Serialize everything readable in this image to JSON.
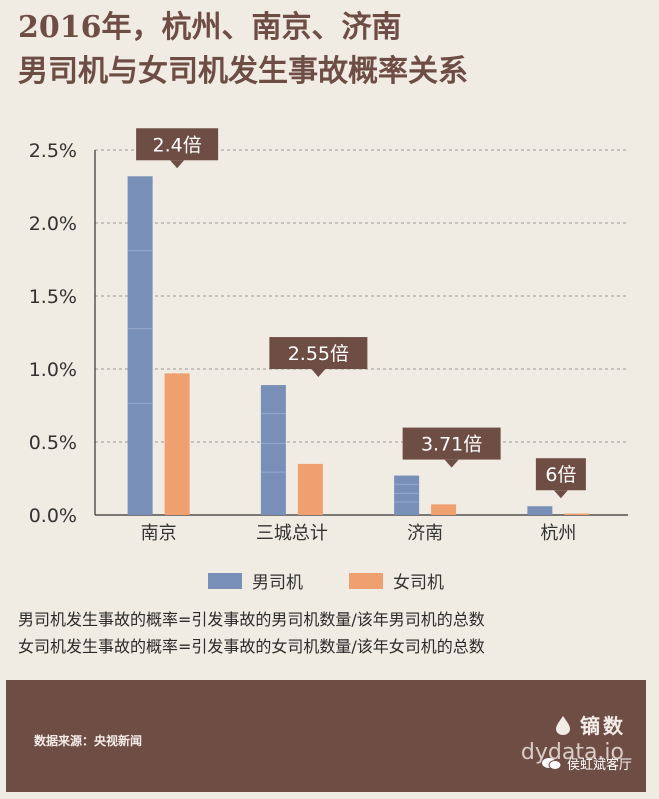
{
  "title_line1": "2016年，杭州、南京、济南",
  "title_line2": "男司机与女司机发生事故概率关系",
  "chart_data": {
    "type": "bar",
    "categories": [
      "南京",
      "三城总计",
      "济南",
      "杭州"
    ],
    "series": [
      {
        "name": "男司机",
        "values": [
          2.32,
          0.89,
          0.27,
          0.06
        ],
        "color": "#7890b8"
      },
      {
        "name": "女司机",
        "values": [
          0.97,
          0.35,
          0.073,
          0.01
        ],
        "color": "#f0a06e"
      }
    ],
    "ratio_labels": [
      "2.4倍",
      "2.55倍",
      "3.71倍",
      "6倍"
    ],
    "y_ticks": [
      "0.0%",
      "0.5%",
      "1.0%",
      "1.5%",
      "2.0%",
      "2.5%"
    ],
    "ylim": [
      0,
      2.5
    ],
    "ylabel": "",
    "xlabel": "",
    "grid": true
  },
  "notes": [
    "男司机发生事故的概率=引发事故的男司机数量/该年男司机的总数",
    "女司机发生事故的概率=引发事故的女司机数量/该年女司机的总数"
  ],
  "footer": {
    "source": "数据来源：央视新闻",
    "brand": "镝数",
    "site": "dydata.io",
    "wechat": "侯虹斌客厅"
  }
}
